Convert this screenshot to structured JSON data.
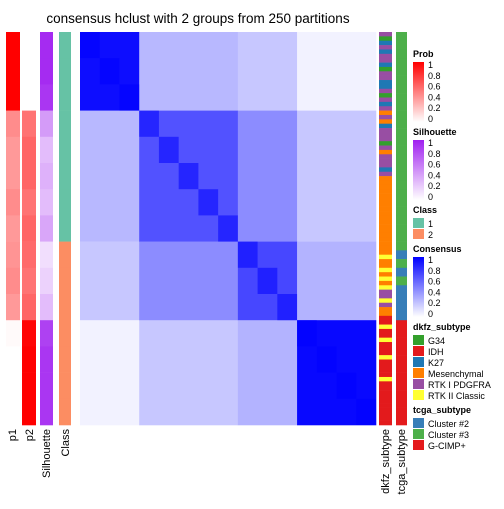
{
  "chart_data": {
    "type": "heatmap",
    "title": "consensus hclust with 2 groups from 250 partitions",
    "matrix_blocks": [
      {
        "rows": [
          0,
          3
        ],
        "cols": [
          0,
          3
        ],
        "value": 0.95
      },
      {
        "rows": [
          0,
          3
        ],
        "cols": [
          3,
          8
        ],
        "value": 0.28
      },
      {
        "rows": [
          0,
          3
        ],
        "cols": [
          8,
          11
        ],
        "value": 0.22
      },
      {
        "rows": [
          0,
          3
        ],
        "cols": [
          11,
          15
        ],
        "value": 0.05
      },
      {
        "rows": [
          3,
          8
        ],
        "cols": [
          3,
          8
        ],
        "value": 0.68
      },
      {
        "rows": [
          3,
          8
        ],
        "cols": [
          8,
          11
        ],
        "value": 0.45
      },
      {
        "rows": [
          3,
          8
        ],
        "cols": [
          11,
          15
        ],
        "value": 0.22
      },
      {
        "rows": [
          8,
          11
        ],
        "cols": [
          8,
          11
        ],
        "value": 0.72
      },
      {
        "rows": [
          8,
          11
        ],
        "cols": [
          11,
          15
        ],
        "value": 0.3
      },
      {
        "rows": [
          11,
          15
        ],
        "cols": [
          11,
          15
        ],
        "value": 0.97
      }
    ],
    "matrix_size": 15,
    "annotations": {
      "p1": [
        1,
        1,
        1,
        0.45,
        0.4,
        0.4,
        0.45,
        0.4,
        0.42,
        0.45,
        0.4,
        0.02,
        0,
        0,
        0
      ],
      "p2": [
        0,
        0,
        0,
        0.55,
        0.6,
        0.6,
        0.55,
        0.6,
        0.58,
        0.55,
        0.6,
        0.98,
        1,
        1,
        1
      ],
      "Silhouette": [
        0.95,
        0.95,
        0.9,
        0.45,
        0.3,
        0.35,
        0.3,
        0.4,
        0.15,
        0.2,
        0.3,
        0.85,
        0.9,
        0.9,
        0.9
      ],
      "Class": [
        1,
        1,
        1,
        1,
        1,
        1,
        1,
        1,
        2,
        2,
        2,
        2,
        2,
        2,
        2
      ]
    },
    "column_labels": [
      "p1",
      "p2",
      "Silhouette",
      "Class",
      "dkfz_subtype",
      "tcga_subtype"
    ],
    "legends": [
      {
        "title": "Prob",
        "type": "continuous",
        "ticks": [
          "1",
          "0.8",
          "0.6",
          "0.4",
          "0.2",
          "0"
        ],
        "colors": [
          "#ffffff",
          "#ff0000"
        ]
      },
      {
        "title": "Silhouette",
        "type": "continuous",
        "ticks": [
          "1",
          "0.8",
          "0.6",
          "0.4",
          "0.2",
          "0"
        ],
        "colors": [
          "#ffffff",
          "#a020f0"
        ]
      },
      {
        "title": "Class",
        "type": "discrete",
        "items": [
          {
            "label": "1",
            "color": "#66c2a5"
          },
          {
            "label": "2",
            "color": "#fc8d62"
          }
        ]
      },
      {
        "title": "Consensus",
        "type": "continuous",
        "ticks": [
          "1",
          "0.8",
          "0.6",
          "0.4",
          "0.2",
          "0"
        ],
        "colors": [
          "#ffffff",
          "#0000ff"
        ]
      },
      {
        "title": "dkfz_subtype",
        "type": "discrete",
        "items": [
          {
            "label": "G34",
            "color": "#33a02c"
          },
          {
            "label": "IDH",
            "color": "#e31a1c"
          },
          {
            "label": "K27",
            "color": "#1f78b4"
          },
          {
            "label": "Mesenchymal",
            "color": "#ff7f00"
          },
          {
            "label": "RTK I PDGFRA",
            "color": "#984ea3"
          },
          {
            "label": "RTK II Classic",
            "color": "#ffff33"
          }
        ]
      },
      {
        "title": "tcga_subtype",
        "type": "discrete",
        "items": [
          {
            "label": "Cluster #2",
            "color": "#377eb8"
          },
          {
            "label": "Cluster #3",
            "color": "#4daf4a"
          },
          {
            "label": "G-CIMP+",
            "color": "#e41a1c"
          }
        ]
      }
    ]
  }
}
